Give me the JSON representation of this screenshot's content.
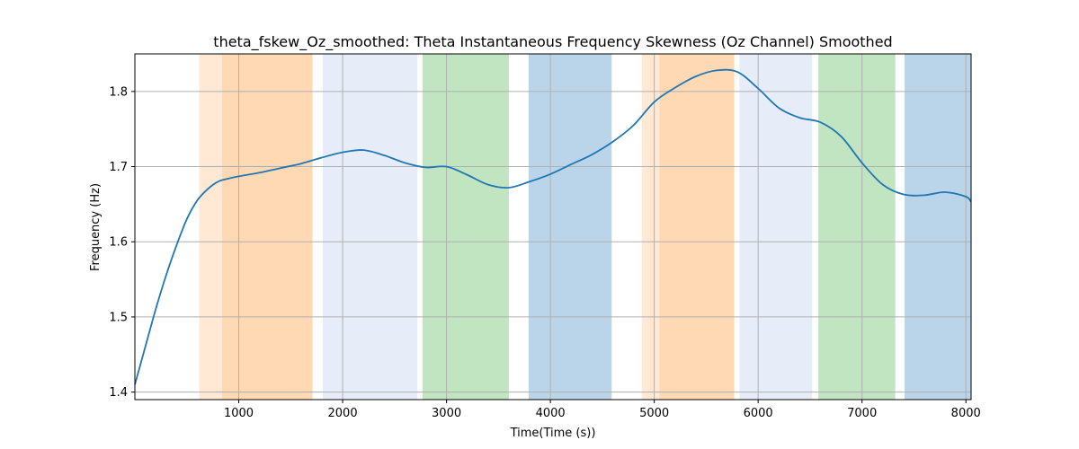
{
  "chart_data": {
    "type": "line",
    "title": "theta_fskew_Oz_smoothed: Theta Instantaneous Frequency Skewness (Oz Channel) Smoothed",
    "xlabel": "Time(Time (s))",
    "ylabel": "Frequency (Hz)",
    "xlim": [
      0,
      8050
    ],
    "ylim": [
      1.39,
      1.85
    ],
    "grid": true,
    "x_ticks": [
      1000,
      2000,
      3000,
      4000,
      5000,
      6000,
      7000,
      8000
    ],
    "y_ticks": [
      1.4,
      1.5,
      1.6,
      1.7,
      1.8
    ],
    "x_tick_labels": [
      "1000",
      "2000",
      "3000",
      "4000",
      "5000",
      "6000",
      "7000",
      "8000"
    ],
    "y_tick_labels": [
      "1.4",
      "1.5",
      "1.6",
      "1.7",
      "1.8"
    ],
    "line_color": "#1f77b4",
    "series": [
      {
        "x": [
          0,
          100,
          200,
          300,
          400,
          500,
          600,
          700,
          800,
          900,
          1000,
          1200,
          1400,
          1600,
          1800,
          2000,
          2200,
          2400,
          2600,
          2800,
          3000,
          3200,
          3400,
          3600,
          3800,
          4000,
          4200,
          4400,
          4600,
          4800,
          5000,
          5200,
          5400,
          5600,
          5800,
          6000,
          6200,
          6400,
          6600,
          6800,
          7000,
          7200,
          7400,
          7600,
          7800,
          8000,
          8050
        ],
        "y": [
          1.41,
          1.46,
          1.51,
          1.555,
          1.595,
          1.63,
          1.655,
          1.67,
          1.68,
          1.684,
          1.687,
          1.692,
          1.698,
          1.704,
          1.712,
          1.719,
          1.722,
          1.715,
          1.705,
          1.699,
          1.7,
          1.689,
          1.676,
          1.672,
          1.68,
          1.69,
          1.703,
          1.716,
          1.733,
          1.755,
          1.786,
          1.805,
          1.82,
          1.828,
          1.826,
          1.804,
          1.778,
          1.765,
          1.759,
          1.74,
          1.705,
          1.676,
          1.663,
          1.662,
          1.666,
          1.66,
          1.653
        ]
      }
    ],
    "bands": [
      {
        "start": 620,
        "end": 840,
        "color": "#ffe8d4"
      },
      {
        "start": 840,
        "end": 1710,
        "color": "#ffd8b4"
      },
      {
        "start": 1810,
        "end": 2720,
        "color": "#e6edf8"
      },
      {
        "start": 2770,
        "end": 3600,
        "color": "#c1e4c1"
      },
      {
        "start": 3790,
        "end": 4590,
        "color": "#bad5e9"
      },
      {
        "start": 4880,
        "end": 5050,
        "color": "#ffe8d4"
      },
      {
        "start": 5050,
        "end": 5770,
        "color": "#ffd8b4"
      },
      {
        "start": 5820,
        "end": 6520,
        "color": "#e6edf8"
      },
      {
        "start": 6580,
        "end": 7320,
        "color": "#c1e4c1"
      },
      {
        "start": 7410,
        "end": 8050,
        "color": "#bad5e9"
      }
    ]
  }
}
